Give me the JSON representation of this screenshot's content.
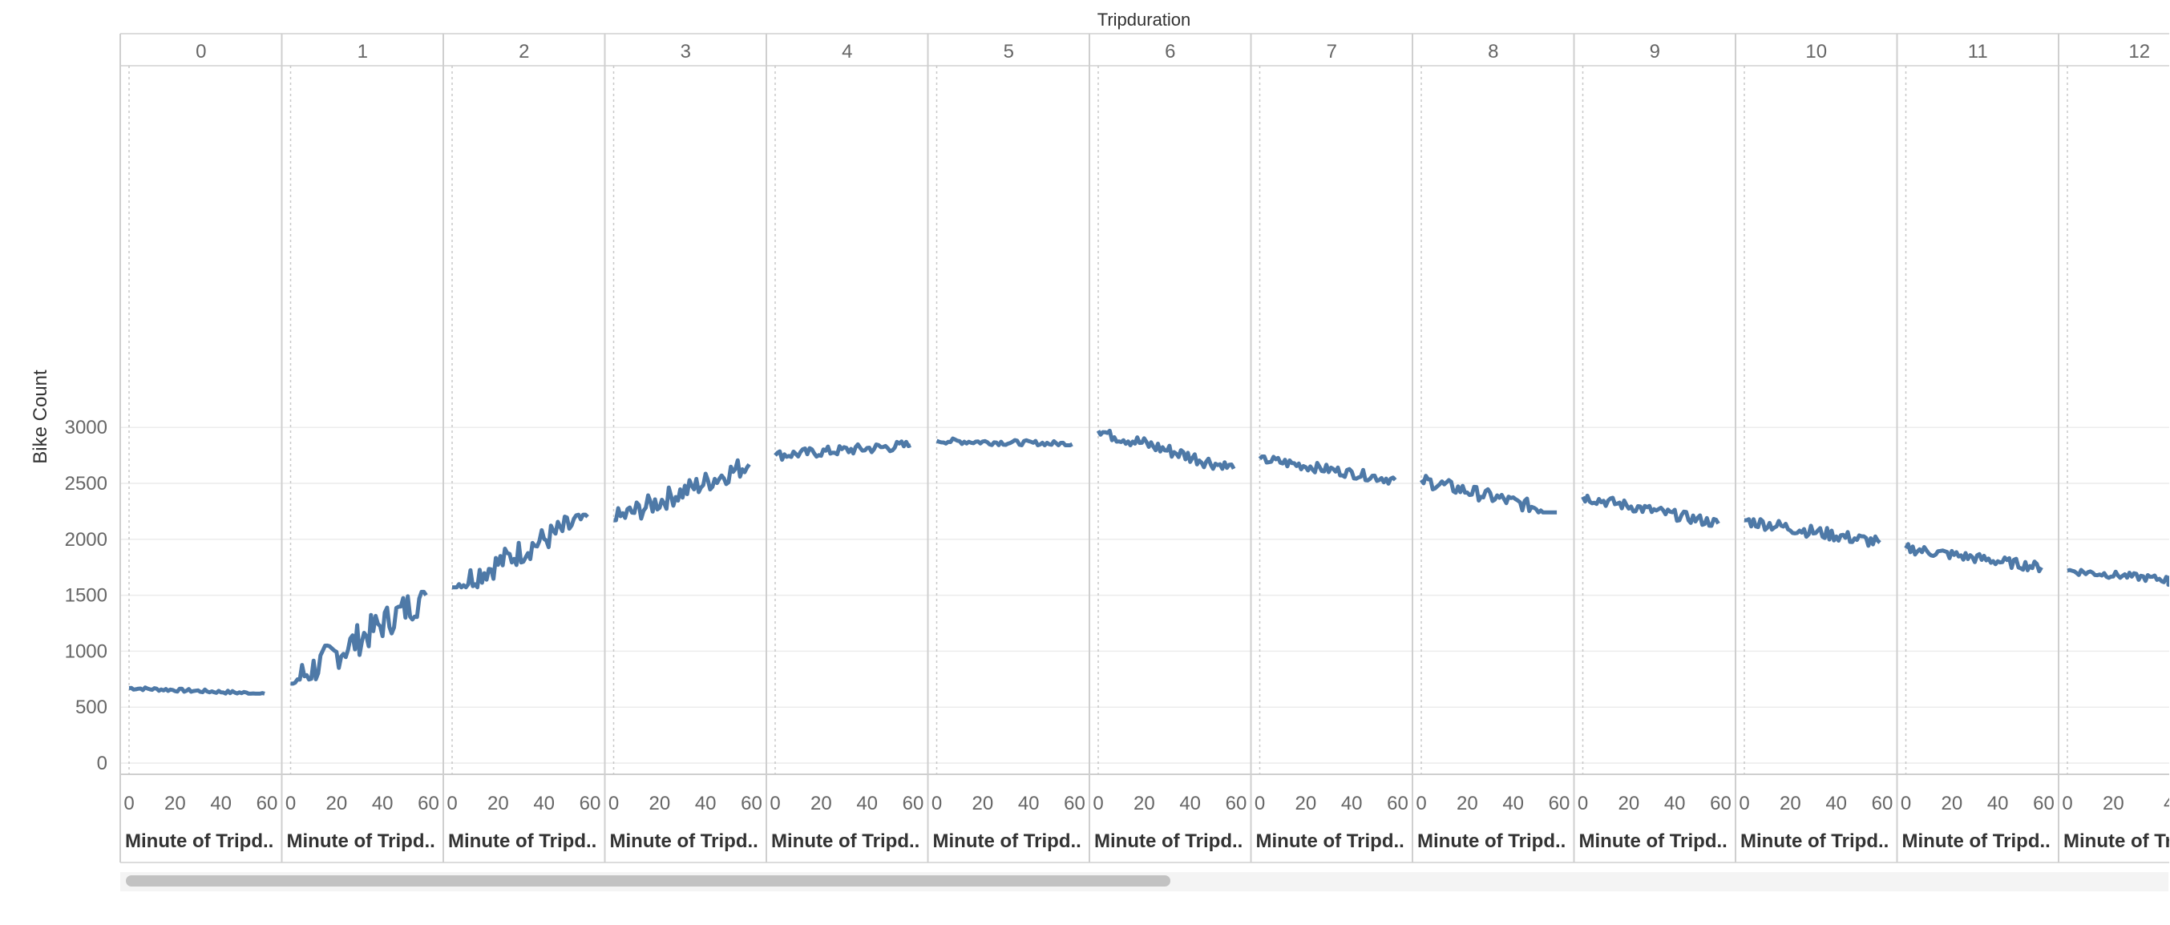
{
  "chart_data": {
    "type": "line",
    "column_header": "Tripduration",
    "ylabel": "Bike Count",
    "xlabel": "Minute of Tripd..",
    "ylim": [
      0,
      3000
    ],
    "yticks": [
      0,
      500,
      1000,
      1500,
      2000,
      2500,
      3000
    ],
    "xticks": [
      0,
      20,
      40,
      60
    ],
    "visible_xticks_last_pane": [
      "0",
      "20",
      "4"
    ],
    "gridlines": "horizontal",
    "color": "#4e79a7",
    "panes": [
      {
        "hour": "0",
        "start": 670,
        "end": 620,
        "min": 620,
        "max": 690
      },
      {
        "hour": "1",
        "start": 710,
        "end": 1500,
        "min": 710,
        "max": 1530
      },
      {
        "hour": "2",
        "start": 1570,
        "end": 2200,
        "min": 1570,
        "max": 2220
      },
      {
        "hour": "3",
        "start": 2170,
        "end": 2670,
        "min": 2170,
        "max": 2710
      },
      {
        "hour": "4",
        "start": 2750,
        "end": 2840,
        "min": 2640,
        "max": 2900
      },
      {
        "hour": "5",
        "start": 2880,
        "end": 2850,
        "min": 2840,
        "max": 2980
      },
      {
        "hour": "6",
        "start": 2970,
        "end": 2630,
        "min": 2630,
        "max": 2970
      },
      {
        "hour": "7",
        "start": 2720,
        "end": 2530,
        "min": 2490,
        "max": 2740
      },
      {
        "hour": "8",
        "start": 2530,
        "end": 2240,
        "min": 2240,
        "max": 2580
      },
      {
        "hour": "9",
        "start": 2380,
        "end": 2140,
        "min": 2120,
        "max": 2390
      },
      {
        "hour": "10",
        "start": 2170,
        "end": 1970,
        "min": 1870,
        "max": 2180
      },
      {
        "hour": "11",
        "start": 1920,
        "end": 1750,
        "min": 1710,
        "max": 1970
      },
      {
        "hour": "12",
        "start": 1720,
        "end": 1610,
        "min": 1580,
        "max": 1760
      }
    ]
  }
}
